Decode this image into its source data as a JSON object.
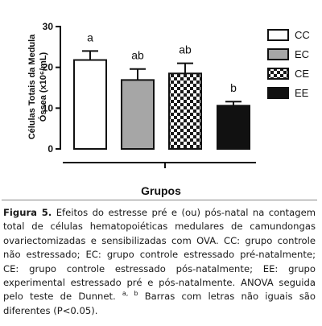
{
  "chart_data": {
    "type": "bar",
    "categories": [
      "CC",
      "EC",
      "CE",
      "EE"
    ],
    "values": [
      21.8,
      16.9,
      18.5,
      10.6
    ],
    "errors": [
      2.2,
      2.7,
      2.5,
      1.0
    ],
    "significance": [
      "a",
      "ab",
      "ab",
      "b"
    ],
    "fills": [
      "#ffffff",
      "#a6a6a6",
      "checker",
      "#111111"
    ],
    "ylabel_lines": [
      "Células Totais da Medula",
      "Óssea (x10⁶/mL)"
    ],
    "xlabel": "Grupos",
    "ylim": [
      0,
      30
    ],
    "yticks": [
      0,
      10,
      20,
      30
    ],
    "legend": [
      "CC",
      "EC",
      "CE",
      "EE"
    ],
    "legend_position": "top-right",
    "grid": false
  },
  "caption": {
    "label": "Figura 5.",
    "text": " Efeitos do estresse pré e (ou) pós-natal na contagem total de células hematopoiéticas medulares de camundongas ovariectomizadas e sensibilizadas com OVA. CC: grupo controle não estressado; EC: grupo controle estressado pré-natalmente; CE: grupo controle estressado pós-natalmente; EE: grupo experimental estressado pré e pós-natalmente. ANOVA seguida pelo teste de Dunnet.",
    "superscript": "a, b",
    "text_after": " Barras com letras não iguais são diferentes (P<0.05)."
  }
}
